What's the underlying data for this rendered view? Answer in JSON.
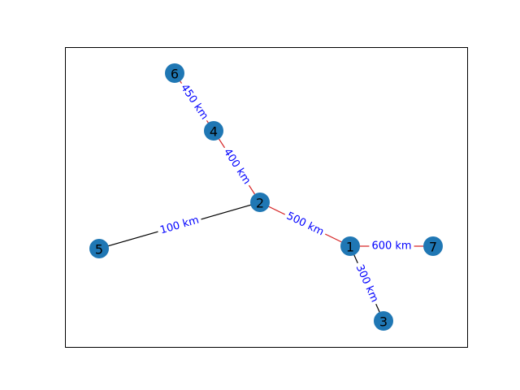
{
  "colors": {
    "background": "#ffffff",
    "frame": "#000000",
    "node_fill": "#1f77b4",
    "node_text": "#000000",
    "edge_default": "#000000",
    "edge_highlight": "#d62728",
    "edge_label_text": "#0000ff"
  },
  "nodes": [
    {
      "id": "6",
      "label": "6"
    },
    {
      "id": "4",
      "label": "4"
    },
    {
      "id": "2",
      "label": "2"
    },
    {
      "id": "5",
      "label": "5"
    },
    {
      "id": "1",
      "label": "1"
    },
    {
      "id": "7",
      "label": "7"
    },
    {
      "id": "3",
      "label": "3"
    }
  ],
  "edges": [
    {
      "from": "6",
      "to": "4",
      "label": "450 km",
      "highlighted": true
    },
    {
      "from": "4",
      "to": "2",
      "label": "400 km",
      "highlighted": true
    },
    {
      "from": "2",
      "to": "5",
      "label": "100 km",
      "highlighted": false
    },
    {
      "from": "2",
      "to": "1",
      "label": "500 km",
      "highlighted": true
    },
    {
      "from": "1",
      "to": "7",
      "label": "600 km",
      "highlighted": true
    },
    {
      "from": "1",
      "to": "3",
      "label": "300 km",
      "highlighted": false
    }
  ]
}
